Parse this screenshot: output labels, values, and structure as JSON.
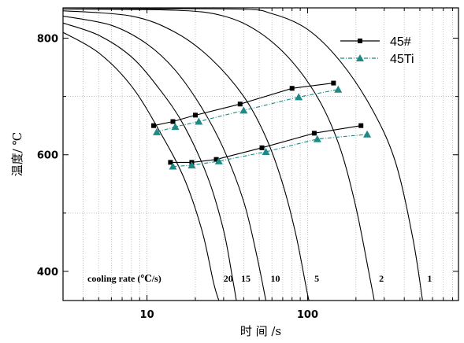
{
  "chart_data": {
    "type": "line",
    "xlabel": "时 间 /s",
    "ylabel": "温度/ ℃",
    "x_scale": "log",
    "xlim": [
      3,
      870
    ],
    "ylim": [
      350,
      852
    ],
    "x_ticks": [
      10,
      100
    ],
    "x_tick_labels": [
      "10",
      "100"
    ],
    "y_ticks": [
      400,
      600,
      800
    ],
    "y_tick_labels": [
      "400",
      "600",
      "800"
    ],
    "grid": "dotted gray at log minor x ticks and y = 500, 700",
    "legend_position": "top-right",
    "cooling_rate_title": "cooling rate (℃/s)",
    "cooling_curves": [
      {
        "rate": "20",
        "points": [
          [
            3,
            810
          ],
          [
            5,
            775
          ],
          [
            8,
            718
          ],
          [
            12,
            640
          ],
          [
            17,
            560
          ],
          [
            22,
            470
          ],
          [
            26,
            380
          ],
          [
            28,
            350
          ]
        ]
      },
      {
        "rate": "15",
        "points": [
          [
            3,
            826
          ],
          [
            5,
            805
          ],
          [
            8,
            768
          ],
          [
            12,
            712
          ],
          [
            17,
            650
          ],
          [
            24,
            560
          ],
          [
            30,
            470
          ],
          [
            34,
            390
          ],
          [
            36,
            350
          ]
        ]
      },
      {
        "rate": "10",
        "points": [
          [
            3,
            838
          ],
          [
            6,
            822
          ],
          [
            10,
            790
          ],
          [
            15,
            745
          ],
          [
            22,
            680
          ],
          [
            30,
            610
          ],
          [
            40,
            520
          ],
          [
            48,
            430
          ],
          [
            55,
            350
          ]
        ]
      },
      {
        "rate": "5",
        "points": [
          [
            3,
            847
          ],
          [
            8,
            838
          ],
          [
            15,
            810
          ],
          [
            25,
            765
          ],
          [
            40,
            700
          ],
          [
            55,
            630
          ],
          [
            70,
            550
          ],
          [
            85,
            460
          ],
          [
            100,
            360
          ],
          [
            103,
            350
          ]
        ]
      },
      {
        "rate": "2",
        "points": [
          [
            3,
            850
          ],
          [
            15,
            848
          ],
          [
            30,
            838
          ],
          [
            50,
            810
          ],
          [
            80,
            760
          ],
          [
            120,
            690
          ],
          [
            160,
            610
          ],
          [
            200,
            510
          ],
          [
            240,
            400
          ],
          [
            260,
            350
          ]
        ]
      },
      {
        "rate": "1",
        "points": [
          [
            3,
            850
          ],
          [
            35,
            850
          ],
          [
            60,
            842
          ],
          [
            100,
            815
          ],
          [
            160,
            760
          ],
          [
            250,
            680
          ],
          [
            350,
            590
          ],
          [
            450,
            460
          ],
          [
            520,
            350
          ]
        ]
      }
    ],
    "series": [
      {
        "name": "45#",
        "color": "#000000",
        "marker": "square",
        "line_style": "solid",
        "upper": {
          "x": [
            11,
            14.5,
            20,
            38,
            80,
            145
          ],
          "y": [
            650,
            657,
            668,
            687,
            714,
            723
          ]
        },
        "lower": {
          "x": [
            14,
            19,
            27,
            52,
            110,
            215
          ],
          "y": [
            587,
            587,
            592,
            612,
            637,
            650
          ]
        }
      },
      {
        "name": "45Ti",
        "color": "#1e8a86",
        "marker": "triangle",
        "line_style": "dash-dot",
        "upper": {
          "x": [
            11.5,
            15,
            21,
            40,
            88,
            155
          ],
          "y": [
            639,
            648,
            657,
            676,
            699,
            712
          ]
        },
        "lower": {
          "x": [
            14.5,
            19,
            28,
            55,
            115,
            235
          ],
          "y": [
            580,
            582,
            589,
            605,
            627,
            635
          ]
        }
      }
    ]
  }
}
